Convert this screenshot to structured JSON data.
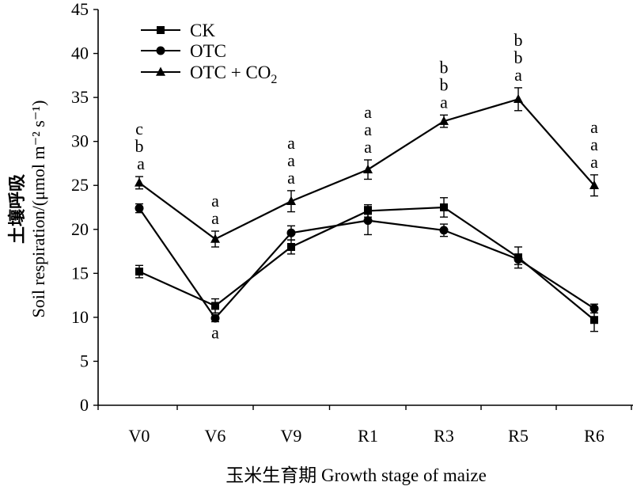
{
  "chart_data": {
    "type": "line",
    "xlabel": "玉米生育期 Growth stage of maize",
    "ylabel_cn": "土壤呼吸",
    "ylabel_en": "Soil respiration/(μmol m⁻² s⁻¹)",
    "categories": [
      "V0",
      "V6",
      "V9",
      "R1",
      "R3",
      "R5",
      "R6"
    ],
    "ylim": [
      0,
      45
    ],
    "yticks": [
      0,
      5,
      10,
      15,
      20,
      25,
      30,
      35,
      40,
      45
    ],
    "grid": false,
    "legend_position": "top-left",
    "series": [
      {
        "name": "CK",
        "marker": "square",
        "values": [
          15.2,
          11.3,
          18.0,
          22.1,
          22.5,
          16.8,
          9.7
        ],
        "errors": [
          0.7,
          0.8,
          0.8,
          0.7,
          1.1,
          1.2,
          1.3
        ],
        "letters": [
          "c",
          "a",
          "a",
          "a",
          "b",
          "b",
          "a"
        ]
      },
      {
        "name": "OTC",
        "marker": "circle",
        "values": [
          22.4,
          9.9,
          19.6,
          21.0,
          19.9,
          16.6,
          11.0
        ],
        "errors": [
          0.5,
          0.4,
          0.8,
          1.6,
          0.7,
          0.6,
          0.5
        ],
        "letters": [
          "b",
          "a",
          "a",
          "a",
          "b",
          "b",
          "a"
        ]
      },
      {
        "name": "OTC + CO₂",
        "marker": "triangle",
        "values": [
          25.3,
          18.9,
          23.2,
          26.8,
          32.3,
          34.8,
          25.0
        ],
        "errors": [
          0.7,
          0.9,
          1.2,
          1.1,
          0.7,
          1.3,
          1.2
        ],
        "letters": [
          "a",
          "a",
          "a",
          "a",
          "a",
          "a",
          "a"
        ]
      }
    ]
  }
}
